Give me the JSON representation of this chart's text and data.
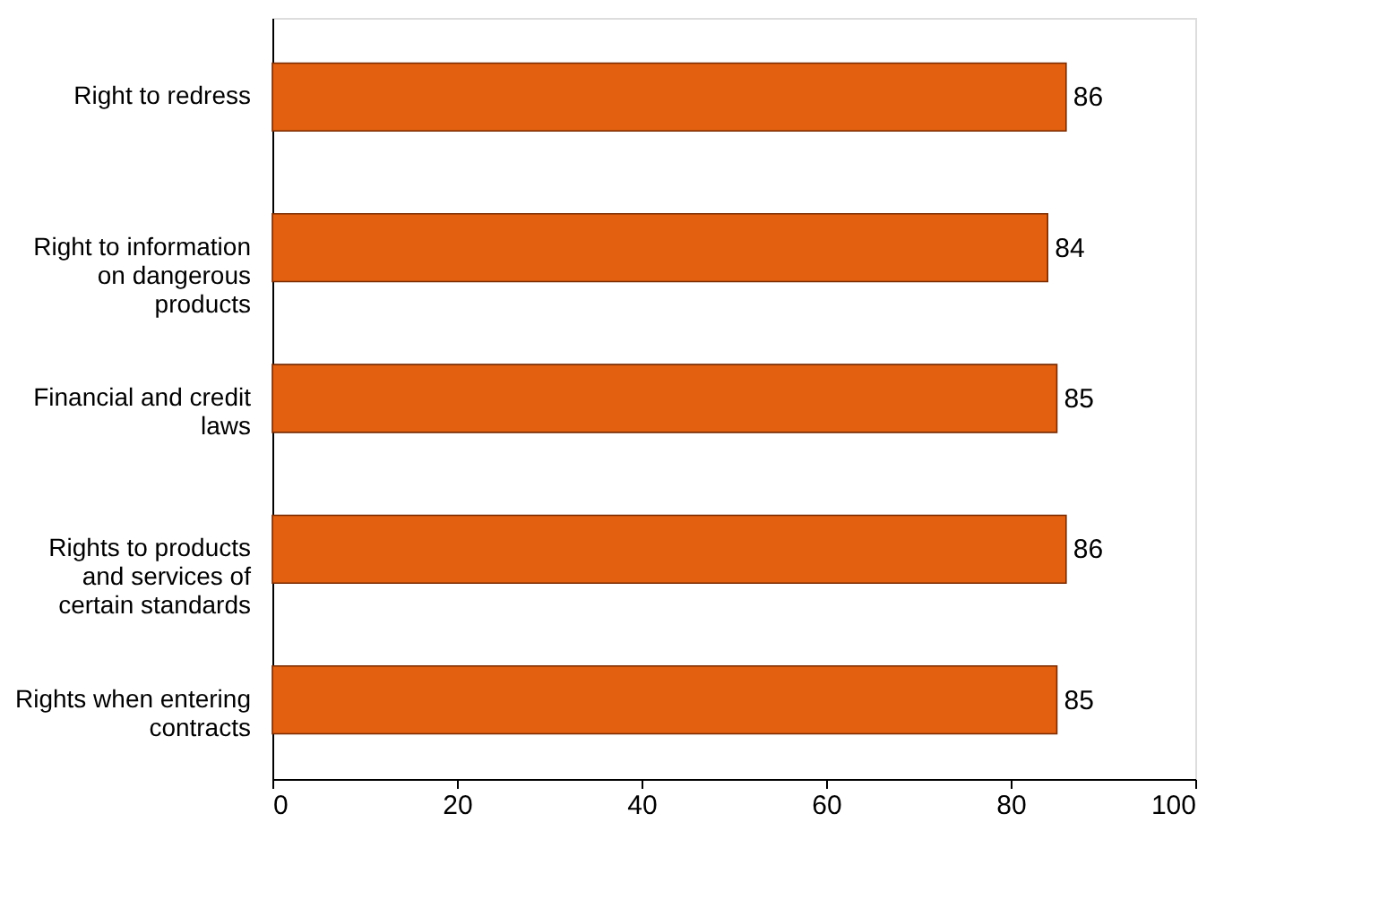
{
  "chart_data": {
    "type": "bar",
    "orientation": "horizontal",
    "categories": [
      "Right to redress",
      "Right to information on dangerous products",
      "Financial and credit laws",
      "Rights to products and services of certain standards",
      "Rights when entering contracts"
    ],
    "values": [
      86,
      84,
      85,
      86,
      85
    ],
    "color": "#e2600f",
    "xlim": [
      0,
      100
    ],
    "xticks": [
      0,
      20,
      40,
      60,
      80,
      100
    ],
    "data_labels": true,
    "grid": false
  }
}
